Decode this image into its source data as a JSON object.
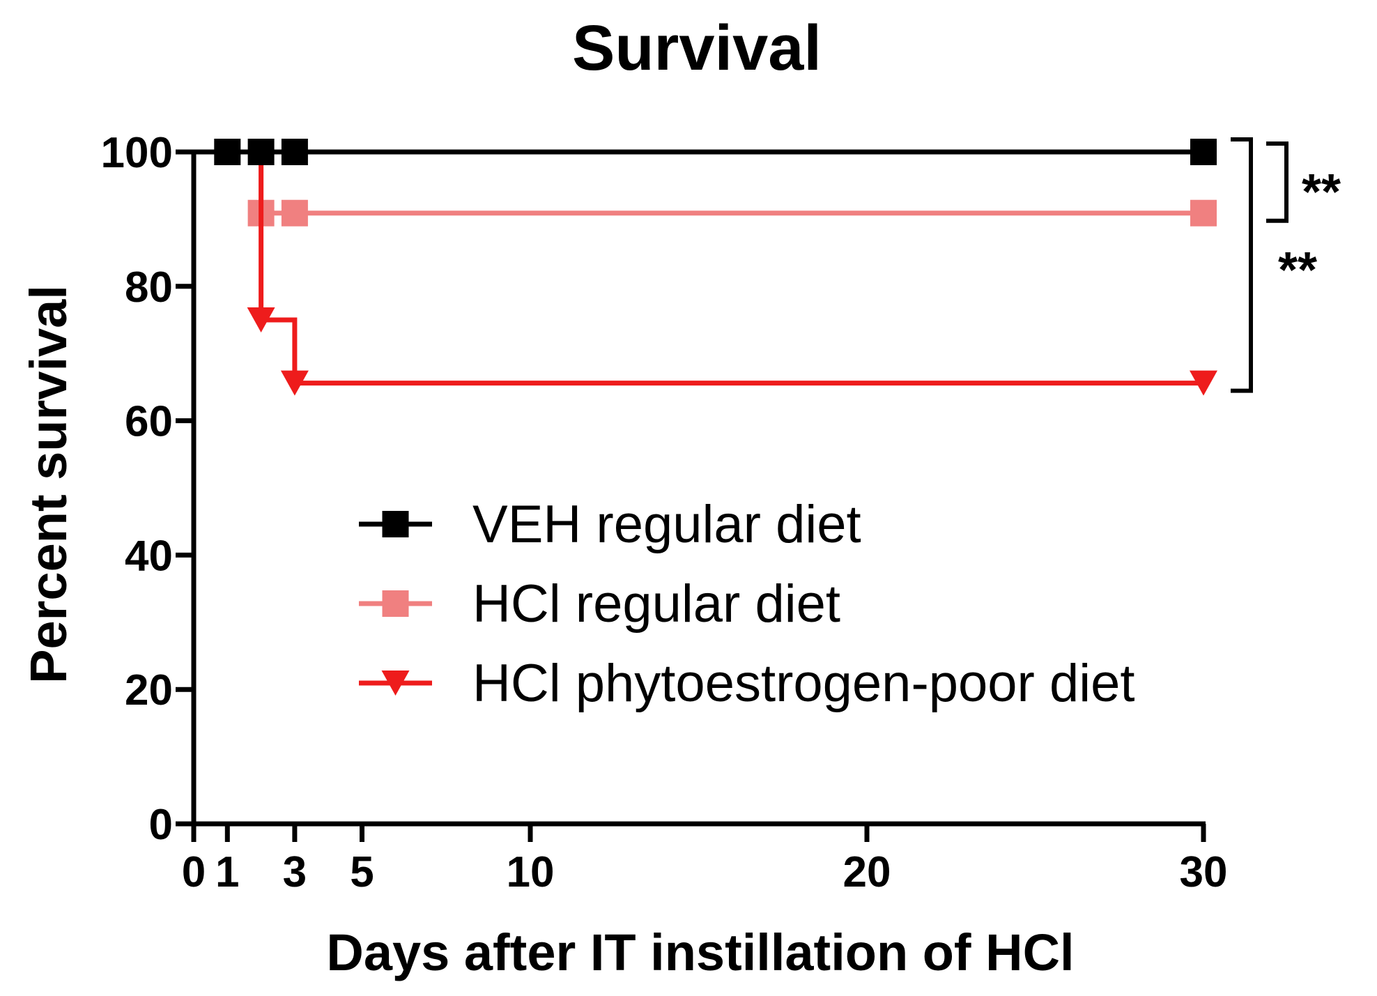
{
  "chart_data": {
    "type": "line",
    "subtype": "kaplan-meier-survival",
    "title": "Survival",
    "xlabel": "Days after IT instillation of HCl",
    "ylabel": "Percent survival",
    "xlim": [
      0,
      30
    ],
    "ylim": [
      0,
      100
    ],
    "xticks": [
      0,
      1,
      3,
      5,
      10,
      20,
      30
    ],
    "xtick_labels": [
      "0",
      "1",
      "3",
      "5",
      "10",
      "20",
      "30"
    ],
    "yticks": [
      0,
      20,
      40,
      60,
      80,
      100
    ],
    "ytick_labels": [
      "0",
      "20",
      "40",
      "60",
      "80",
      "100"
    ],
    "grid": false,
    "legend_position": "center",
    "series": [
      {
        "name": "VEH regular diet",
        "color": "#000000",
        "marker": "square",
        "steps": [
          [
            0,
            100
          ],
          [
            30,
            100
          ]
        ],
        "markers": [
          [
            1,
            100
          ],
          [
            2,
            100
          ],
          [
            3,
            100
          ],
          [
            30,
            100
          ]
        ]
      },
      {
        "name": "HCl regular diet",
        "color": "#f08080",
        "marker": "square",
        "steps": [
          [
            0,
            100
          ],
          [
            2,
            100
          ],
          [
            2,
            90.9
          ],
          [
            30,
            90.9
          ]
        ],
        "markers": [
          [
            2,
            90.9
          ],
          [
            3,
            90.9
          ],
          [
            30,
            90.9
          ]
        ]
      },
      {
        "name": "HCl phytoestrogen-poor diet",
        "color": "#ee1c1c",
        "marker": "triangle-down",
        "steps": [
          [
            0,
            100
          ],
          [
            2,
            100
          ],
          [
            2,
            75
          ],
          [
            3,
            75
          ],
          [
            3,
            65.6
          ],
          [
            30,
            65.6
          ]
        ],
        "markers": [
          [
            2,
            75
          ],
          [
            3,
            65.6
          ],
          [
            30,
            65.6
          ]
        ]
      }
    ],
    "annotations": [
      {
        "type": "significance-bracket",
        "from": "VEH regular diet",
        "to": "HCl regular diet",
        "label": "**"
      },
      {
        "type": "significance-bracket",
        "from": "VEH regular diet",
        "to": "HCl phytoestrogen-poor diet",
        "label": "**"
      }
    ]
  }
}
